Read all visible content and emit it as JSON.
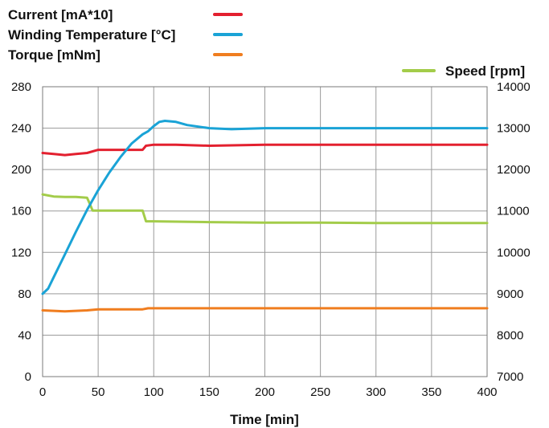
{
  "chart_data": {
    "type": "line",
    "xlabel": "Time [min]",
    "xlim": [
      0,
      400
    ],
    "x_ticks": [
      "0",
      "50",
      "100",
      "150",
      "200",
      "250",
      "300",
      "350",
      "400"
    ],
    "y_left": {
      "ylim": [
        0,
        280
      ],
      "ticks": [
        "0",
        "40",
        "80",
        "120",
        "160",
        "200",
        "240",
        "280"
      ]
    },
    "y_right": {
      "ylim": [
        7000,
        14000
      ],
      "ticks": [
        "7000",
        "8000",
        "9000",
        "10000",
        "11000",
        "12000",
        "13000",
        "14000"
      ]
    },
    "grid": true,
    "legend_position": "top",
    "series": [
      {
        "name": "Current [mA*10]",
        "color": "#e3202f",
        "axis": "left",
        "x": [
          0,
          10,
          20,
          30,
          40,
          50,
          60,
          70,
          80,
          90,
          93,
          100,
          120,
          150,
          200,
          250,
          300,
          350,
          400
        ],
        "y": [
          216,
          215,
          214,
          215,
          216,
          219,
          219,
          219,
          219,
          219,
          223,
          224,
          224,
          223,
          224,
          224,
          224,
          224,
          224
        ]
      },
      {
        "name": "Winding Temperature [°C]",
        "color": "#1aa3d6",
        "axis": "left",
        "x": [
          0,
          5,
          10,
          20,
          30,
          40,
          50,
          60,
          70,
          80,
          90,
          95,
          100,
          105,
          110,
          120,
          130,
          150,
          170,
          200,
          250,
          300,
          350,
          400
        ],
        "y": [
          80,
          85,
          96,
          118,
          140,
          161,
          180,
          197,
          212,
          225,
          234,
          237,
          242,
          246,
          247,
          246,
          243,
          240,
          239,
          240,
          240,
          240,
          240,
          240
        ]
      },
      {
        "name": "Torque [mNm]",
        "color": "#f07d1f",
        "axis": "left",
        "x": [
          0,
          20,
          40,
          50,
          80,
          90,
          95,
          150,
          200,
          250,
          300,
          350,
          400
        ],
        "y": [
          64,
          63,
          64,
          65,
          65,
          65,
          66,
          66,
          66,
          66,
          66,
          66,
          66
        ]
      },
      {
        "name": "Speed [rpm]",
        "color": "#a3cc4a",
        "axis": "right",
        "x": [
          0,
          10,
          20,
          30,
          40,
          42,
          45,
          50,
          60,
          70,
          80,
          90,
          93,
          100,
          150,
          200,
          250,
          300,
          350,
          400
        ],
        "y": [
          11400,
          11350,
          11340,
          11340,
          11320,
          11200,
          11010,
          11010,
          11010,
          11010,
          11010,
          11010,
          10750,
          10750,
          10730,
          10720,
          10720,
          10710,
          10710,
          10710
        ]
      }
    ]
  }
}
